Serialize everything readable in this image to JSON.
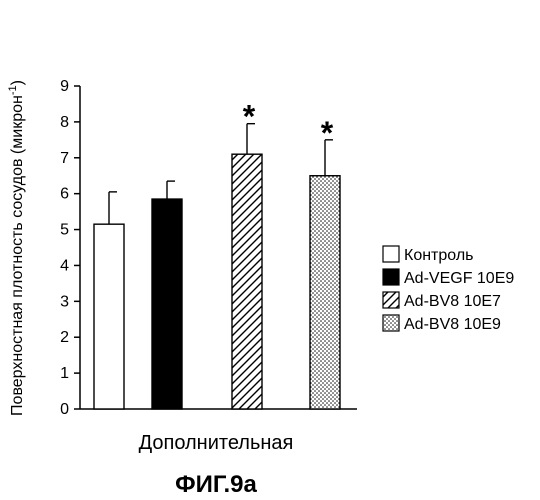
{
  "chart_data": {
    "type": "bar",
    "title": "",
    "caption": "ФИГ.9a",
    "xlabel": "Дополнительная",
    "ylabel": "Поверхностная плотность сосудов (микрон",
    "ylabel_superscript": "-1",
    "ylabel_close": ")",
    "ylim": [
      0,
      9
    ],
    "yticks": [
      "0",
      "1",
      "2",
      "3",
      "4",
      "5",
      "6",
      "7",
      "8",
      "9"
    ],
    "legend_position": "right",
    "significance_marker": "*",
    "series": [
      {
        "name": "Контроль",
        "value": 5.15,
        "error": 0.9,
        "pattern": "white",
        "significant": false
      },
      {
        "name": "Ad-VEGF 10E9",
        "value": 5.85,
        "error": 0.5,
        "pattern": "black",
        "significant": false
      },
      {
        "name": "Ad-BV8 10E7",
        "value": 7.1,
        "error": 0.85,
        "pattern": "hatch",
        "significant": true
      },
      {
        "name": "Ad-BV8 10E9",
        "value": 6.5,
        "error": 1.0,
        "pattern": "dots",
        "significant": true
      }
    ]
  }
}
